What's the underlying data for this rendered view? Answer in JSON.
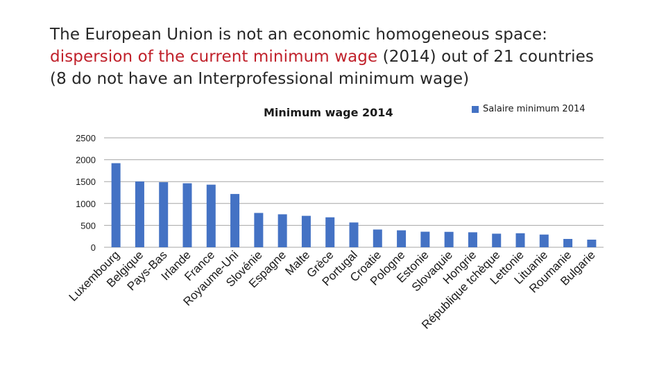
{
  "slide": {
    "title_line1": "The European Union is not an economic homogeneous space:",
    "title_line2_red": "dispersion of the current minimum wage",
    "title_line2_rest": " (2014) out of 21 countries",
    "title_line3": "(8 do not have an Interprofessional minimum wage)"
  },
  "colors": {
    "bar": "#4472c4",
    "title_red": "#c0202a",
    "grid": "#a6a6a6"
  },
  "chart_data": {
    "type": "bar",
    "title": "Minimum wage 2014",
    "legend_position": "top-right",
    "grid": true,
    "ylim": [
      0,
      2500
    ],
    "yticks": [
      0,
      500,
      1000,
      1500,
      2000,
      2500
    ],
    "categories": [
      "Luxembourg",
      "Belgique",
      "Pays-Bas",
      "Irlande",
      "France",
      "Royaume-Uni",
      "Slovénie",
      "Espagne",
      "Malte",
      "Grèce",
      "Portugal",
      "Croatie",
      "Pologne",
      "Estonie",
      "Slovaquie",
      "Hongrie",
      "République tchèque",
      "Lettonie",
      "Lituanie",
      "Roumanie",
      "Bulgarie"
    ],
    "series": [
      {
        "name": "Salaire minimum 2014",
        "values": [
          1921,
          1502,
          1486,
          1462,
          1430,
          1217,
          784,
          753,
          718,
          684,
          566,
          405,
          387,
          355,
          352,
          342,
          310,
          320,
          290,
          190,
          174
        ]
      }
    ]
  }
}
